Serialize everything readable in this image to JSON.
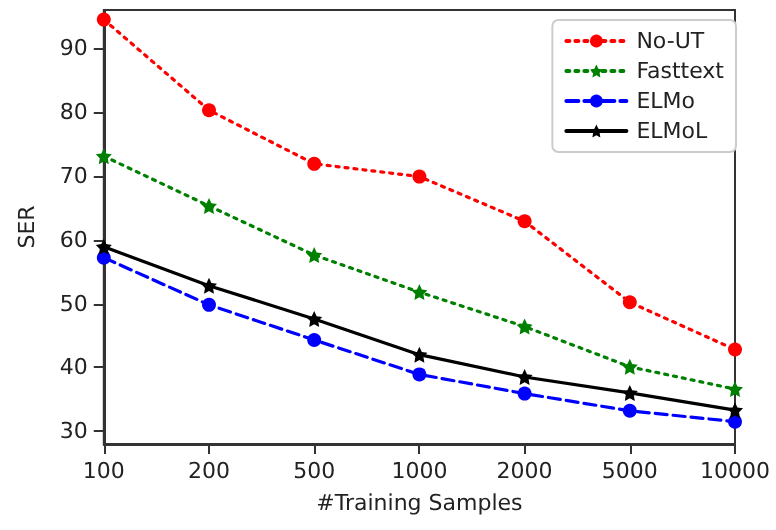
{
  "chart_data": {
    "type": "line",
    "xlabel": "#Training Samples",
    "ylabel": "SER",
    "categories": [
      "100",
      "200",
      "500",
      "1000",
      "2000",
      "5000",
      "10000"
    ],
    "series": [
      {
        "name": "No-UT",
        "color": "#ff0000",
        "marker": "circle",
        "line_style": "dotted",
        "values": [
          94.5,
          80.3,
          71.9,
          69.9,
          62.9,
          50.2,
          42.8
        ]
      },
      {
        "name": "Fasttext",
        "color": "#008000",
        "marker": "star",
        "line_style": "dotted",
        "values": [
          73.1,
          65.3,
          57.6,
          51.8,
          46.4,
          40.1,
          36.6
        ]
      },
      {
        "name": "ELMo",
        "color": "#0000ff",
        "marker": "circle",
        "line_style": "dashed",
        "values": [
          57.2,
          49.8,
          44.3,
          38.9,
          35.9,
          33.2,
          31.5
        ]
      },
      {
        "name": "ELMoL",
        "color": "#000000",
        "marker": "star",
        "line_style": "solid",
        "values": [
          58.9,
          52.8,
          47.6,
          42.0,
          38.5,
          36.0,
          33.3
        ]
      }
    ],
    "ylim": [
      28,
      96
    ],
    "yticks": [
      30,
      40,
      50,
      60,
      70,
      80,
      90
    ],
    "grid": false,
    "legend": "top right"
  }
}
